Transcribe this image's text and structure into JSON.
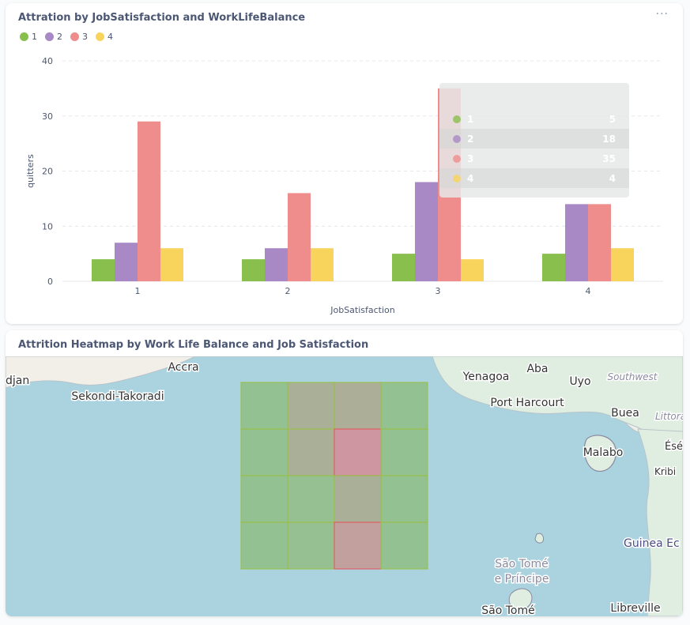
{
  "chart_card": {
    "title": "Attration by JobSatisfaction and WorkLifeBalance",
    "menu_label": "···"
  },
  "colors": {
    "series_1": "#88bf4d",
    "series_2": "#a989c5",
    "series_3": "#ef8c8c",
    "series_4": "#f9d45c"
  },
  "chart_data": {
    "type": "bar",
    "title": "Attration by JobSatisfaction and WorkLifeBalance",
    "xlabel": "JobSatisfaction",
    "ylabel": "quitters",
    "categories": [
      "1",
      "2",
      "3",
      "4"
    ],
    "ylim": [
      0,
      40
    ],
    "yticks": [
      0,
      10,
      20,
      30,
      40
    ],
    "grid": true,
    "legend_position": "top-left",
    "series": [
      {
        "name": "1",
        "values": [
          4,
          4,
          5,
          5
        ]
      },
      {
        "name": "2",
        "values": [
          7,
          6,
          18,
          14
        ]
      },
      {
        "name": "3",
        "values": [
          29,
          16,
          35,
          14
        ]
      },
      {
        "name": "4",
        "values": [
          6,
          6,
          4,
          6
        ]
      }
    ]
  },
  "tooltip": {
    "rows": [
      {
        "label": "1",
        "value": "5"
      },
      {
        "label": "2",
        "value": "18"
      },
      {
        "label": "3",
        "value": "35"
      },
      {
        "label": "4",
        "value": "4"
      }
    ]
  },
  "map_card": {
    "title": "Attrition Heatmap by Work Life Balance and Job Satisfaction",
    "places": [
      {
        "name": "Accra"
      },
      {
        "name": "djan"
      },
      {
        "name": "Sekondi-Takoradi"
      },
      {
        "name": "Yenagoa"
      },
      {
        "name": "Aba"
      },
      {
        "name": "Uyo"
      },
      {
        "name": "Southwest"
      },
      {
        "name": "Port Harcourt"
      },
      {
        "name": "Buea"
      },
      {
        "name": "Littora"
      },
      {
        "name": "Malabo"
      },
      {
        "name": "Ésél"
      },
      {
        "name": "Kribi"
      },
      {
        "name": "Guinea Ec"
      },
      {
        "name": "São Tomé"
      },
      {
        "name": "e Príncipe"
      },
      {
        "name": "São Tomé"
      },
      {
        "name": "Libreville"
      }
    ],
    "heatmap_levels": [
      [
        0.1,
        0.45,
        0.5,
        0.1
      ],
      [
        0.1,
        0.45,
        1.0,
        0.1
      ],
      [
        0.1,
        0.15,
        0.45,
        0.1
      ],
      [
        0.1,
        0.15,
        0.8,
        0.1
      ]
    ]
  }
}
